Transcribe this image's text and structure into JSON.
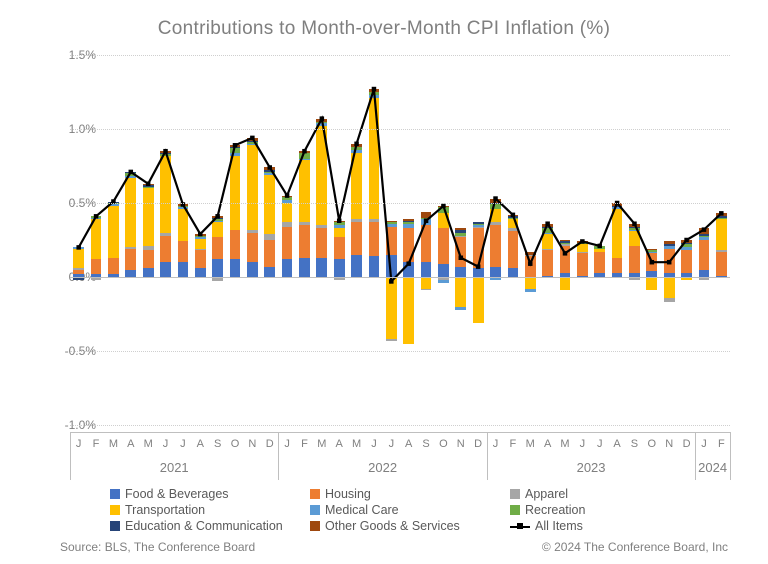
{
  "title": "Contributions to Month-over-Month CPI Inflation (%)",
  "source": "Source: BLS, The Conference Board",
  "copyright": "© 2024 The Conference Board, Inc",
  "chart": {
    "type": "stacked-bar-plus-line",
    "ylim": [
      -1.0,
      1.5
    ],
    "yticks": [
      -1.0,
      -0.5,
      0.0,
      0.5,
      1.0,
      1.5
    ],
    "ytick_labels": [
      "-1.0%",
      "-0.5%",
      "0.0%",
      "0.5%",
      "1.0%",
      "1.5%"
    ],
    "grid_color": "#cfcfcf",
    "background": "#ffffff",
    "bar_width_ratio": 0.62,
    "xlabels": [
      "J",
      "F",
      "M",
      "A",
      "M",
      "J",
      "J",
      "A",
      "S",
      "O",
      "N",
      "D",
      "J",
      "F",
      "M",
      "A",
      "M",
      "J",
      "J",
      "A",
      "S",
      "O",
      "N",
      "D",
      "J",
      "F",
      "M",
      "A",
      "M",
      "J",
      "J",
      "A",
      "S",
      "O",
      "N",
      "D",
      "J",
      "F"
    ],
    "year_groups": [
      {
        "label": "2021",
        "start": 0,
        "end": 11
      },
      {
        "label": "2022",
        "start": 12,
        "end": 23
      },
      {
        "label": "2023",
        "start": 24,
        "end": 35
      },
      {
        "label": "2024",
        "start": 36,
        "end": 37
      }
    ],
    "series": [
      {
        "key": "food",
        "name": "Food & Beverages",
        "color": "#4472c4"
      },
      {
        "key": "housing",
        "name": "Housing",
        "color": "#ed7d31"
      },
      {
        "key": "apparel",
        "name": "Apparel",
        "color": "#a6a6a6"
      },
      {
        "key": "transport",
        "name": "Transportation",
        "color": "#ffc000"
      },
      {
        "key": "medical",
        "name": "Medical Care",
        "color": "#5b9bd5"
      },
      {
        "key": "recreation",
        "name": "Recreation",
        "color": "#70ad47"
      },
      {
        "key": "edu",
        "name": "Education & Communication",
        "color": "#264478"
      },
      {
        "key": "other",
        "name": "Other Goods & Services",
        "color": "#9e480e"
      }
    ],
    "line_series": {
      "name": "All Items",
      "color": "#000000",
      "line_width": 2.2,
      "marker_size": 4.5
    },
    "data": [
      {
        "m": "2021-01",
        "food": 0.02,
        "housing": 0.03,
        "apparel": 0.01,
        "transport": 0.13,
        "medical": 0.01,
        "recreation": 0.0,
        "edu": 0.0,
        "other": 0.0,
        "all": 0.2,
        "neg": {
          "recreation": -0.01,
          "edu": -0.01
        }
      },
      {
        "m": "2021-02",
        "food": 0.02,
        "housing": 0.1,
        "apparel": 0.0,
        "transport": 0.27,
        "medical": 0.01,
        "recreation": 0.01,
        "edu": 0.0,
        "other": 0.0,
        "all": 0.41,
        "neg": {
          "apparel": -0.02
        }
      },
      {
        "m": "2021-03",
        "food": 0.02,
        "housing": 0.11,
        "apparel": 0.0,
        "transport": 0.35,
        "medical": 0.01,
        "recreation": 0.01,
        "edu": 0.01,
        "other": 0.0,
        "all": 0.51,
        "neg": {
          "apparel": -0.01
        }
      },
      {
        "m": "2021-04",
        "food": 0.05,
        "housing": 0.14,
        "apparel": 0.01,
        "transport": 0.47,
        "medical": 0.01,
        "recreation": 0.02,
        "edu": 0.01,
        "other": 0.0,
        "all": 0.71
      },
      {
        "m": "2021-05",
        "food": 0.06,
        "housing": 0.12,
        "apparel": 0.03,
        "transport": 0.39,
        "medical": 0.0,
        "recreation": 0.01,
        "edu": 0.01,
        "other": 0.01,
        "all": 0.63,
        "neg": {
          "medical": -0.01
        }
      },
      {
        "m": "2021-06",
        "food": 0.1,
        "housing": 0.18,
        "apparel": 0.02,
        "transport": 0.52,
        "medical": 0.0,
        "recreation": 0.01,
        "edu": 0.01,
        "other": 0.01,
        "all": 0.85
      },
      {
        "m": "2021-07",
        "food": 0.1,
        "housing": 0.14,
        "apparel": 0.0,
        "transport": 0.22,
        "medical": 0.01,
        "recreation": 0.01,
        "edu": 0.0,
        "other": 0.01,
        "all": 0.49
      },
      {
        "m": "2021-08",
        "food": 0.06,
        "housing": 0.12,
        "apparel": 0.01,
        "transport": 0.07,
        "medical": 0.01,
        "recreation": 0.01,
        "edu": 0.0,
        "other": 0.01,
        "all": 0.29
      },
      {
        "m": "2021-09",
        "food": 0.12,
        "housing": 0.15,
        "apparel": 0.0,
        "transport": 0.1,
        "medical": 0.01,
        "recreation": 0.01,
        "edu": 0.01,
        "other": 0.01,
        "all": 0.41,
        "neg": {
          "apparel": -0.03
        }
      },
      {
        "m": "2021-10",
        "food": 0.12,
        "housing": 0.2,
        "apparel": 0.0,
        "transport": 0.5,
        "medical": 0.02,
        "recreation": 0.03,
        "edu": 0.01,
        "other": 0.01,
        "all": 0.89
      },
      {
        "m": "2021-11",
        "food": 0.1,
        "housing": 0.2,
        "apparel": 0.02,
        "transport": 0.57,
        "medical": 0.01,
        "recreation": 0.01,
        "edu": 0.01,
        "other": 0.02,
        "all": 0.94
      },
      {
        "m": "2021-12",
        "food": 0.07,
        "housing": 0.18,
        "apparel": 0.04,
        "transport": 0.4,
        "medical": 0.01,
        "recreation": 0.01,
        "edu": 0.01,
        "other": 0.02,
        "all": 0.74
      },
      {
        "m": "2022-01",
        "food": 0.12,
        "housing": 0.22,
        "apparel": 0.03,
        "transport": 0.13,
        "medical": 0.02,
        "recreation": 0.02,
        "edu": 0.0,
        "other": 0.01,
        "all": 0.55
      },
      {
        "m": "2022-02",
        "food": 0.13,
        "housing": 0.22,
        "apparel": 0.02,
        "transport": 0.42,
        "medical": 0.01,
        "recreation": 0.04,
        "edu": 0.0,
        "other": 0.01,
        "all": 0.85
      },
      {
        "m": "2022-03",
        "food": 0.13,
        "housing": 0.2,
        "apparel": 0.02,
        "transport": 0.67,
        "medical": 0.02,
        "recreation": 0.01,
        "edu": 0.0,
        "other": 0.02,
        "all": 1.07
      },
      {
        "m": "2022-04",
        "food": 0.12,
        "housing": 0.15,
        "apparel": 0.0,
        "transport": 0.06,
        "medical": 0.02,
        "recreation": 0.02,
        "edu": 0.0,
        "other": 0.01,
        "all": 0.38,
        "neg": {
          "apparel": -0.02
        }
      },
      {
        "m": "2022-05",
        "food": 0.15,
        "housing": 0.22,
        "apparel": 0.02,
        "transport": 0.45,
        "medical": 0.02,
        "recreation": 0.02,
        "edu": 0.0,
        "other": 0.02,
        "all": 0.9
      },
      {
        "m": "2022-06",
        "food": 0.14,
        "housing": 0.23,
        "apparel": 0.02,
        "transport": 0.82,
        "medical": 0.02,
        "recreation": 0.02,
        "edu": 0.0,
        "other": 0.02,
        "all": 1.27
      },
      {
        "m": "2022-07",
        "food": 0.15,
        "housing": 0.19,
        "apparel": 0.0,
        "transport": 0.0,
        "medical": 0.02,
        "recreation": 0.01,
        "edu": 0.0,
        "other": 0.01,
        "all": -0.03,
        "neg": {
          "transport": -0.42,
          "apparel": -0.01
        }
      },
      {
        "m": "2022-08",
        "food": 0.1,
        "housing": 0.23,
        "apparel": 0.0,
        "transport": 0.0,
        "medical": 0.03,
        "recreation": 0.01,
        "edu": 0.01,
        "other": 0.01,
        "all": 0.09,
        "neg": {
          "transport": -0.45
        }
      },
      {
        "m": "2022-09",
        "food": 0.1,
        "housing": 0.25,
        "apparel": 0.0,
        "transport": 0.0,
        "medical": 0.04,
        "recreation": 0.01,
        "edu": 0.0,
        "other": 0.04,
        "all": 0.38,
        "neg": {
          "transport": -0.08,
          "apparel": -0.01
        }
      },
      {
        "m": "2022-10",
        "food": 0.09,
        "housing": 0.24,
        "apparel": 0.0,
        "transport": 0.1,
        "medical": 0.0,
        "recreation": 0.04,
        "edu": 0.0,
        "other": 0.01,
        "all": 0.48,
        "neg": {
          "apparel": -0.02,
          "medical": -0.02
        }
      },
      {
        "m": "2022-11",
        "food": 0.07,
        "housing": 0.2,
        "apparel": 0.01,
        "transport": 0.0,
        "medical": 0.0,
        "recreation": 0.02,
        "edu": 0.02,
        "other": 0.01,
        "all": 0.13,
        "neg": {
          "transport": -0.2,
          "medical": -0.02
        }
      },
      {
        "m": "2022-12",
        "food": 0.06,
        "housing": 0.27,
        "apparel": 0.01,
        "transport": 0.0,
        "medical": 0.01,
        "recreation": 0.01,
        "edu": 0.01,
        "other": 0.0,
        "all": 0.07,
        "neg": {
          "transport": -0.31
        }
      },
      {
        "m": "2023-01",
        "food": 0.07,
        "housing": 0.28,
        "apparel": 0.02,
        "transport": 0.09,
        "medical": 0.0,
        "recreation": 0.03,
        "edu": 0.01,
        "other": 0.03,
        "all": 0.53,
        "neg": {
          "medical": -0.02
        }
      },
      {
        "m": "2023-02",
        "food": 0.06,
        "housing": 0.25,
        "apparel": 0.02,
        "transport": 0.06,
        "medical": 0.0,
        "recreation": 0.01,
        "edu": 0.01,
        "other": 0.01,
        "all": 0.42
      },
      {
        "m": "2023-03",
        "food": 0.0,
        "housing": 0.14,
        "apparel": 0.01,
        "transport": 0.0,
        "medical": 0.0,
        "recreation": 0.0,
        "edu": 0.0,
        "other": 0.02,
        "all": 0.09,
        "neg": {
          "transport": -0.08,
          "medical": -0.02
        }
      },
      {
        "m": "2023-04",
        "food": 0.01,
        "housing": 0.17,
        "apparel": 0.01,
        "transport": 0.1,
        "medical": 0.01,
        "recreation": 0.03,
        "edu": 0.01,
        "other": 0.02,
        "all": 0.36
      },
      {
        "m": "2023-05",
        "food": 0.03,
        "housing": 0.18,
        "apparel": 0.01,
        "transport": 0.0,
        "medical": 0.0,
        "recreation": 0.01,
        "edu": 0.01,
        "other": 0.01,
        "all": 0.16,
        "neg": {
          "transport": -0.09
        }
      },
      {
        "m": "2023-06",
        "food": 0.01,
        "housing": 0.15,
        "apparel": 0.01,
        "transport": 0.05,
        "medical": 0.0,
        "recreation": 0.01,
        "edu": 0.0,
        "other": 0.01,
        "all": 0.24
      },
      {
        "m": "2023-07",
        "food": 0.03,
        "housing": 0.14,
        "apparel": 0.0,
        "transport": 0.02,
        "medical": 0.0,
        "recreation": 0.02,
        "edu": 0.0,
        "other": 0.0,
        "all": 0.21
      },
      {
        "m": "2023-08",
        "food": 0.03,
        "housing": 0.1,
        "apparel": 0.0,
        "transport": 0.33,
        "medical": 0.01,
        "recreation": 0.0,
        "edu": 0.01,
        "other": 0.02,
        "all": 0.5,
        "neg": {
          "recreation": -0.01
        }
      },
      {
        "m": "2023-09",
        "food": 0.03,
        "housing": 0.18,
        "apparel": 0.0,
        "transport": 0.1,
        "medical": 0.01,
        "recreation": 0.01,
        "edu": 0.01,
        "other": 0.02,
        "all": 0.36,
        "neg": {
          "apparel": -0.02
        }
      },
      {
        "m": "2023-10",
        "food": 0.04,
        "housing": 0.12,
        "apparel": 0.0,
        "transport": 0.0,
        "medical": 0.01,
        "recreation": 0.01,
        "edu": 0.0,
        "other": 0.01,
        "all": 0.1,
        "neg": {
          "transport": -0.09
        }
      },
      {
        "m": "2023-11",
        "food": 0.03,
        "housing": 0.16,
        "apparel": 0.0,
        "transport": 0.0,
        "medical": 0.02,
        "recreation": 0.0,
        "edu": 0.01,
        "other": 0.02,
        "all": 0.1,
        "neg": {
          "transport": -0.14,
          "apparel": -0.03
        }
      },
      {
        "m": "2023-12",
        "food": 0.03,
        "housing": 0.15,
        "apparel": 0.0,
        "transport": 0.0,
        "medical": 0.02,
        "recreation": 0.02,
        "edu": 0.01,
        "other": 0.02,
        "all": 0.25,
        "neg": {
          "transport": -0.02
        }
      },
      {
        "m": "2024-01",
        "food": 0.05,
        "housing": 0.2,
        "apparel": 0.0,
        "transport": 0.0,
        "medical": 0.02,
        "recreation": 0.01,
        "edu": 0.01,
        "other": 0.04,
        "all": 0.32,
        "neg": {
          "apparel": -0.02
        }
      },
      {
        "m": "2024-02",
        "food": 0.01,
        "housing": 0.16,
        "apparel": 0.01,
        "transport": 0.21,
        "medical": 0.0,
        "recreation": 0.01,
        "edu": 0.01,
        "other": 0.02,
        "all": 0.43
      }
    ]
  },
  "legend": {
    "rows": [
      [
        "food",
        "housing",
        "apparel"
      ],
      [
        "transport",
        "medical",
        "recreation"
      ],
      [
        "edu",
        "other",
        "_line"
      ]
    ]
  }
}
